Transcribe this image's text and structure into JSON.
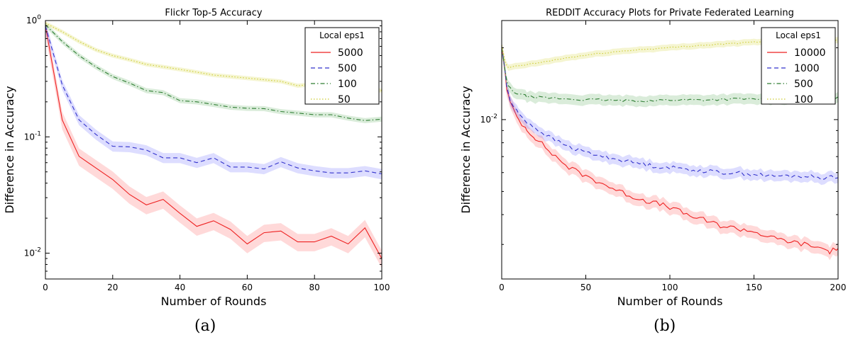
{
  "chart_data": [
    {
      "type": "line",
      "panel_label": "(a)",
      "title": "Flickr Top-5 Accuracy",
      "xlabel": "Number of Rounds",
      "ylabel": "Difference in Accuracy",
      "xlim": [
        0,
        100
      ],
      "ylim": [
        0.006,
        1.0
      ],
      "yscale": "log",
      "xticks": [
        "0",
        "20",
        "40",
        "60",
        "80",
        "100"
      ],
      "ytick_labels": [
        "10^0",
        "10^-1",
        "10^-2"
      ],
      "legend": {
        "title": "Local eps1",
        "placement": "top-right"
      },
      "series": [
        {
          "name": "5000",
          "color": "#ee2222",
          "dash": "solid",
          "band_rel": 0.17,
          "x": [
            0,
            5,
            10,
            15,
            20,
            25,
            30,
            35,
            40,
            45,
            50,
            55,
            60,
            65,
            70,
            75,
            80,
            85,
            90,
            95,
            100
          ],
          "y": [
            0.9,
            0.14,
            0.068,
            0.054,
            0.043,
            0.032,
            0.026,
            0.029,
            0.022,
            0.017,
            0.019,
            0.016,
            0.012,
            0.015,
            0.0155,
            0.0125,
            0.0125,
            0.014,
            0.012,
            0.0165,
            0.009
          ]
        },
        {
          "name": "500",
          "color": "#3333cc",
          "dash": "dashed",
          "band_rel": 0.1,
          "x": [
            0,
            5,
            10,
            15,
            20,
            25,
            30,
            35,
            40,
            45,
            50,
            55,
            60,
            65,
            70,
            75,
            80,
            85,
            90,
            95,
            100
          ],
          "y": [
            0.9,
            0.28,
            0.14,
            0.105,
            0.083,
            0.082,
            0.077,
            0.066,
            0.066,
            0.06,
            0.066,
            0.055,
            0.055,
            0.053,
            0.061,
            0.054,
            0.051,
            0.049,
            0.049,
            0.051,
            0.048
          ]
        },
        {
          "name": "100",
          "color": "#2e7d32",
          "dash": "dashdot",
          "band_rel": 0.05,
          "x": [
            0,
            5,
            10,
            15,
            20,
            25,
            30,
            35,
            40,
            45,
            50,
            55,
            60,
            65,
            70,
            75,
            80,
            85,
            90,
            95,
            100
          ],
          "y": [
            0.92,
            0.66,
            0.5,
            0.4,
            0.33,
            0.29,
            0.25,
            0.24,
            0.205,
            0.2,
            0.19,
            0.18,
            0.176,
            0.175,
            0.165,
            0.16,
            0.155,
            0.155,
            0.145,
            0.138,
            0.142
          ]
        },
        {
          "name": "50",
          "color": "#cccc33",
          "dash": "dotted",
          "band_rel": 0.04,
          "x": [
            0,
            5,
            10,
            15,
            20,
            25,
            30,
            35,
            40,
            45,
            50,
            55,
            60,
            65,
            70,
            75,
            80,
            85,
            90,
            95,
            100
          ],
          "y": [
            0.95,
            0.8,
            0.66,
            0.56,
            0.5,
            0.46,
            0.42,
            0.4,
            0.38,
            0.36,
            0.34,
            0.33,
            0.32,
            0.31,
            0.3,
            0.275,
            0.285,
            0.27,
            0.26,
            0.255,
            0.25
          ]
        }
      ]
    },
    {
      "type": "line",
      "panel_label": "(b)",
      "title": "REDDIT Accuracy Plots for Private Federated Learning",
      "xlabel": "Number of Rounds",
      "ylabel": "Difference in Accuracy",
      "xlim": [
        0,
        200
      ],
      "ylim": [
        0.00215,
        0.026
      ],
      "yscale": "log",
      "xticks": [
        "0",
        "50",
        "100",
        "150",
        "200"
      ],
      "ytick_labels": [
        "10^-2"
      ],
      "legend": {
        "title": "Local eps1",
        "placement": "top-right"
      },
      "series": [
        {
          "name": "10000",
          "color": "#ee2222",
          "dash": "solid",
          "band_rel": 0.06,
          "jitter": 0.025,
          "x": [
            0,
            1,
            2,
            3,
            4,
            5,
            7,
            10,
            15,
            20,
            30,
            40,
            50,
            60,
            70,
            80,
            90,
            100,
            110,
            120,
            130,
            140,
            150,
            160,
            170,
            180,
            190,
            195,
            200
          ],
          "y": [
            0.02,
            0.018,
            0.016,
            0.0135,
            0.0125,
            0.0118,
            0.0109,
            0.01,
            0.0091,
            0.0084,
            0.0072,
            0.0063,
            0.0058,
            0.0054,
            0.005,
            0.0047,
            0.0045,
            0.0043,
            0.004,
            0.0038,
            0.0036,
            0.0035,
            0.0034,
            0.0032,
            0.0031,
            0.003,
            0.0029,
            0.0028,
            0.0029
          ]
        },
        {
          "name": "1000",
          "color": "#3333cc",
          "dash": "dashed",
          "band_rel": 0.05,
          "jitter": 0.02,
          "x": [
            0,
            1,
            2,
            3,
            4,
            5,
            7,
            10,
            15,
            20,
            30,
            40,
            50,
            60,
            70,
            80,
            90,
            100,
            110,
            120,
            130,
            140,
            150,
            160,
            170,
            180,
            190,
            200
          ],
          "y": [
            0.02,
            0.018,
            0.016,
            0.0138,
            0.0128,
            0.0121,
            0.0113,
            0.0106,
            0.0098,
            0.0092,
            0.0083,
            0.0077,
            0.0073,
            0.007,
            0.0068,
            0.0066,
            0.0064,
            0.0063,
            0.0062,
            0.0061,
            0.006,
            0.006,
            0.0059,
            0.0058,
            0.0058,
            0.0058,
            0.0057,
            0.0058
          ]
        },
        {
          "name": "500",
          "color": "#2e7d32",
          "dash": "dashdot",
          "band_rel": 0.05,
          "jitter": 0.012,
          "x": [
            0,
            1,
            2,
            3,
            4,
            5,
            7,
            10,
            15,
            20,
            30,
            40,
            50,
            60,
            70,
            80,
            90,
            100,
            120,
            140,
            160,
            180,
            200
          ],
          "y": [
            0.02,
            0.018,
            0.016,
            0.0145,
            0.0138,
            0.0135,
            0.0131,
            0.0128,
            0.0125,
            0.0124,
            0.0123,
            0.0122,
            0.0121,
            0.0121,
            0.012,
            0.012,
            0.012,
            0.0121,
            0.0121,
            0.0122,
            0.0122,
            0.0123,
            0.0123
          ]
        },
        {
          "name": "100",
          "color": "#cccc33",
          "dash": "dotted",
          "band_rel": 0.03,
          "jitter": 0.006,
          "x": [
            0,
            1,
            2,
            3,
            4,
            6,
            10,
            20,
            30,
            40,
            50,
            60,
            70,
            80,
            90,
            100,
            110,
            120,
            130,
            140,
            150,
            160,
            170,
            180,
            190,
            200
          ],
          "y": [
            0.0205,
            0.019,
            0.0175,
            0.0168,
            0.0165,
            0.0166,
            0.0168,
            0.0172,
            0.0177,
            0.0182,
            0.0186,
            0.019,
            0.0193,
            0.0196,
            0.0198,
            0.02,
            0.0203,
            0.0205,
            0.0207,
            0.0209,
            0.0211,
            0.0212,
            0.0213,
            0.0214,
            0.0215,
            0.0216
          ]
        }
      ]
    }
  ]
}
